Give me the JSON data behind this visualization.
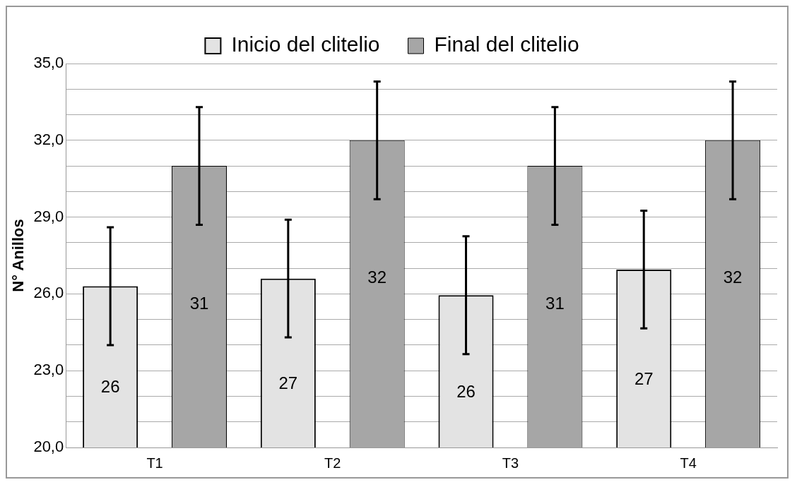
{
  "chart_data": {
    "type": "bar",
    "ylabel": "N° Anillos",
    "categories": [
      "T1",
      "T2",
      "T3",
      "T4"
    ],
    "series": [
      {
        "name": "Inicio del clitelio",
        "color": "#e3e3e3",
        "values": [
          26.3,
          26.6,
          25.95,
          26.95
        ],
        "errors": [
          2.3,
          2.3,
          2.3,
          2.3
        ],
        "value_labels": [
          "26",
          "27",
          "26",
          "27"
        ]
      },
      {
        "name": "Final del clitelio",
        "color": "#a6a6a6",
        "values": [
          31,
          32,
          31,
          32
        ],
        "errors": [
          2.3,
          2.3,
          2.3,
          2.3
        ],
        "value_labels": [
          "31",
          "32",
          "31",
          "32"
        ]
      }
    ],
    "ylim": [
      20,
      35
    ],
    "yticks": [
      {
        "value": 20,
        "label": "20,0"
      },
      {
        "value": 21,
        "label": null
      },
      {
        "value": 22,
        "label": null
      },
      {
        "value": 23,
        "label": "23,0"
      },
      {
        "value": 24,
        "label": null
      },
      {
        "value": 25,
        "label": null
      },
      {
        "value": 26,
        "label": "26,0"
      },
      {
        "value": 27,
        "label": null
      },
      {
        "value": 28,
        "label": null
      },
      {
        "value": 29,
        "label": "29,0"
      },
      {
        "value": 30,
        "label": null
      },
      {
        "value": 31,
        "label": null
      },
      {
        "value": 32,
        "label": "32,0"
      },
      {
        "value": 33,
        "label": null
      },
      {
        "value": 34,
        "label": null
      },
      {
        "value": 35,
        "label": "35,0"
      }
    ],
    "grid": "y",
    "legend": "top"
  }
}
